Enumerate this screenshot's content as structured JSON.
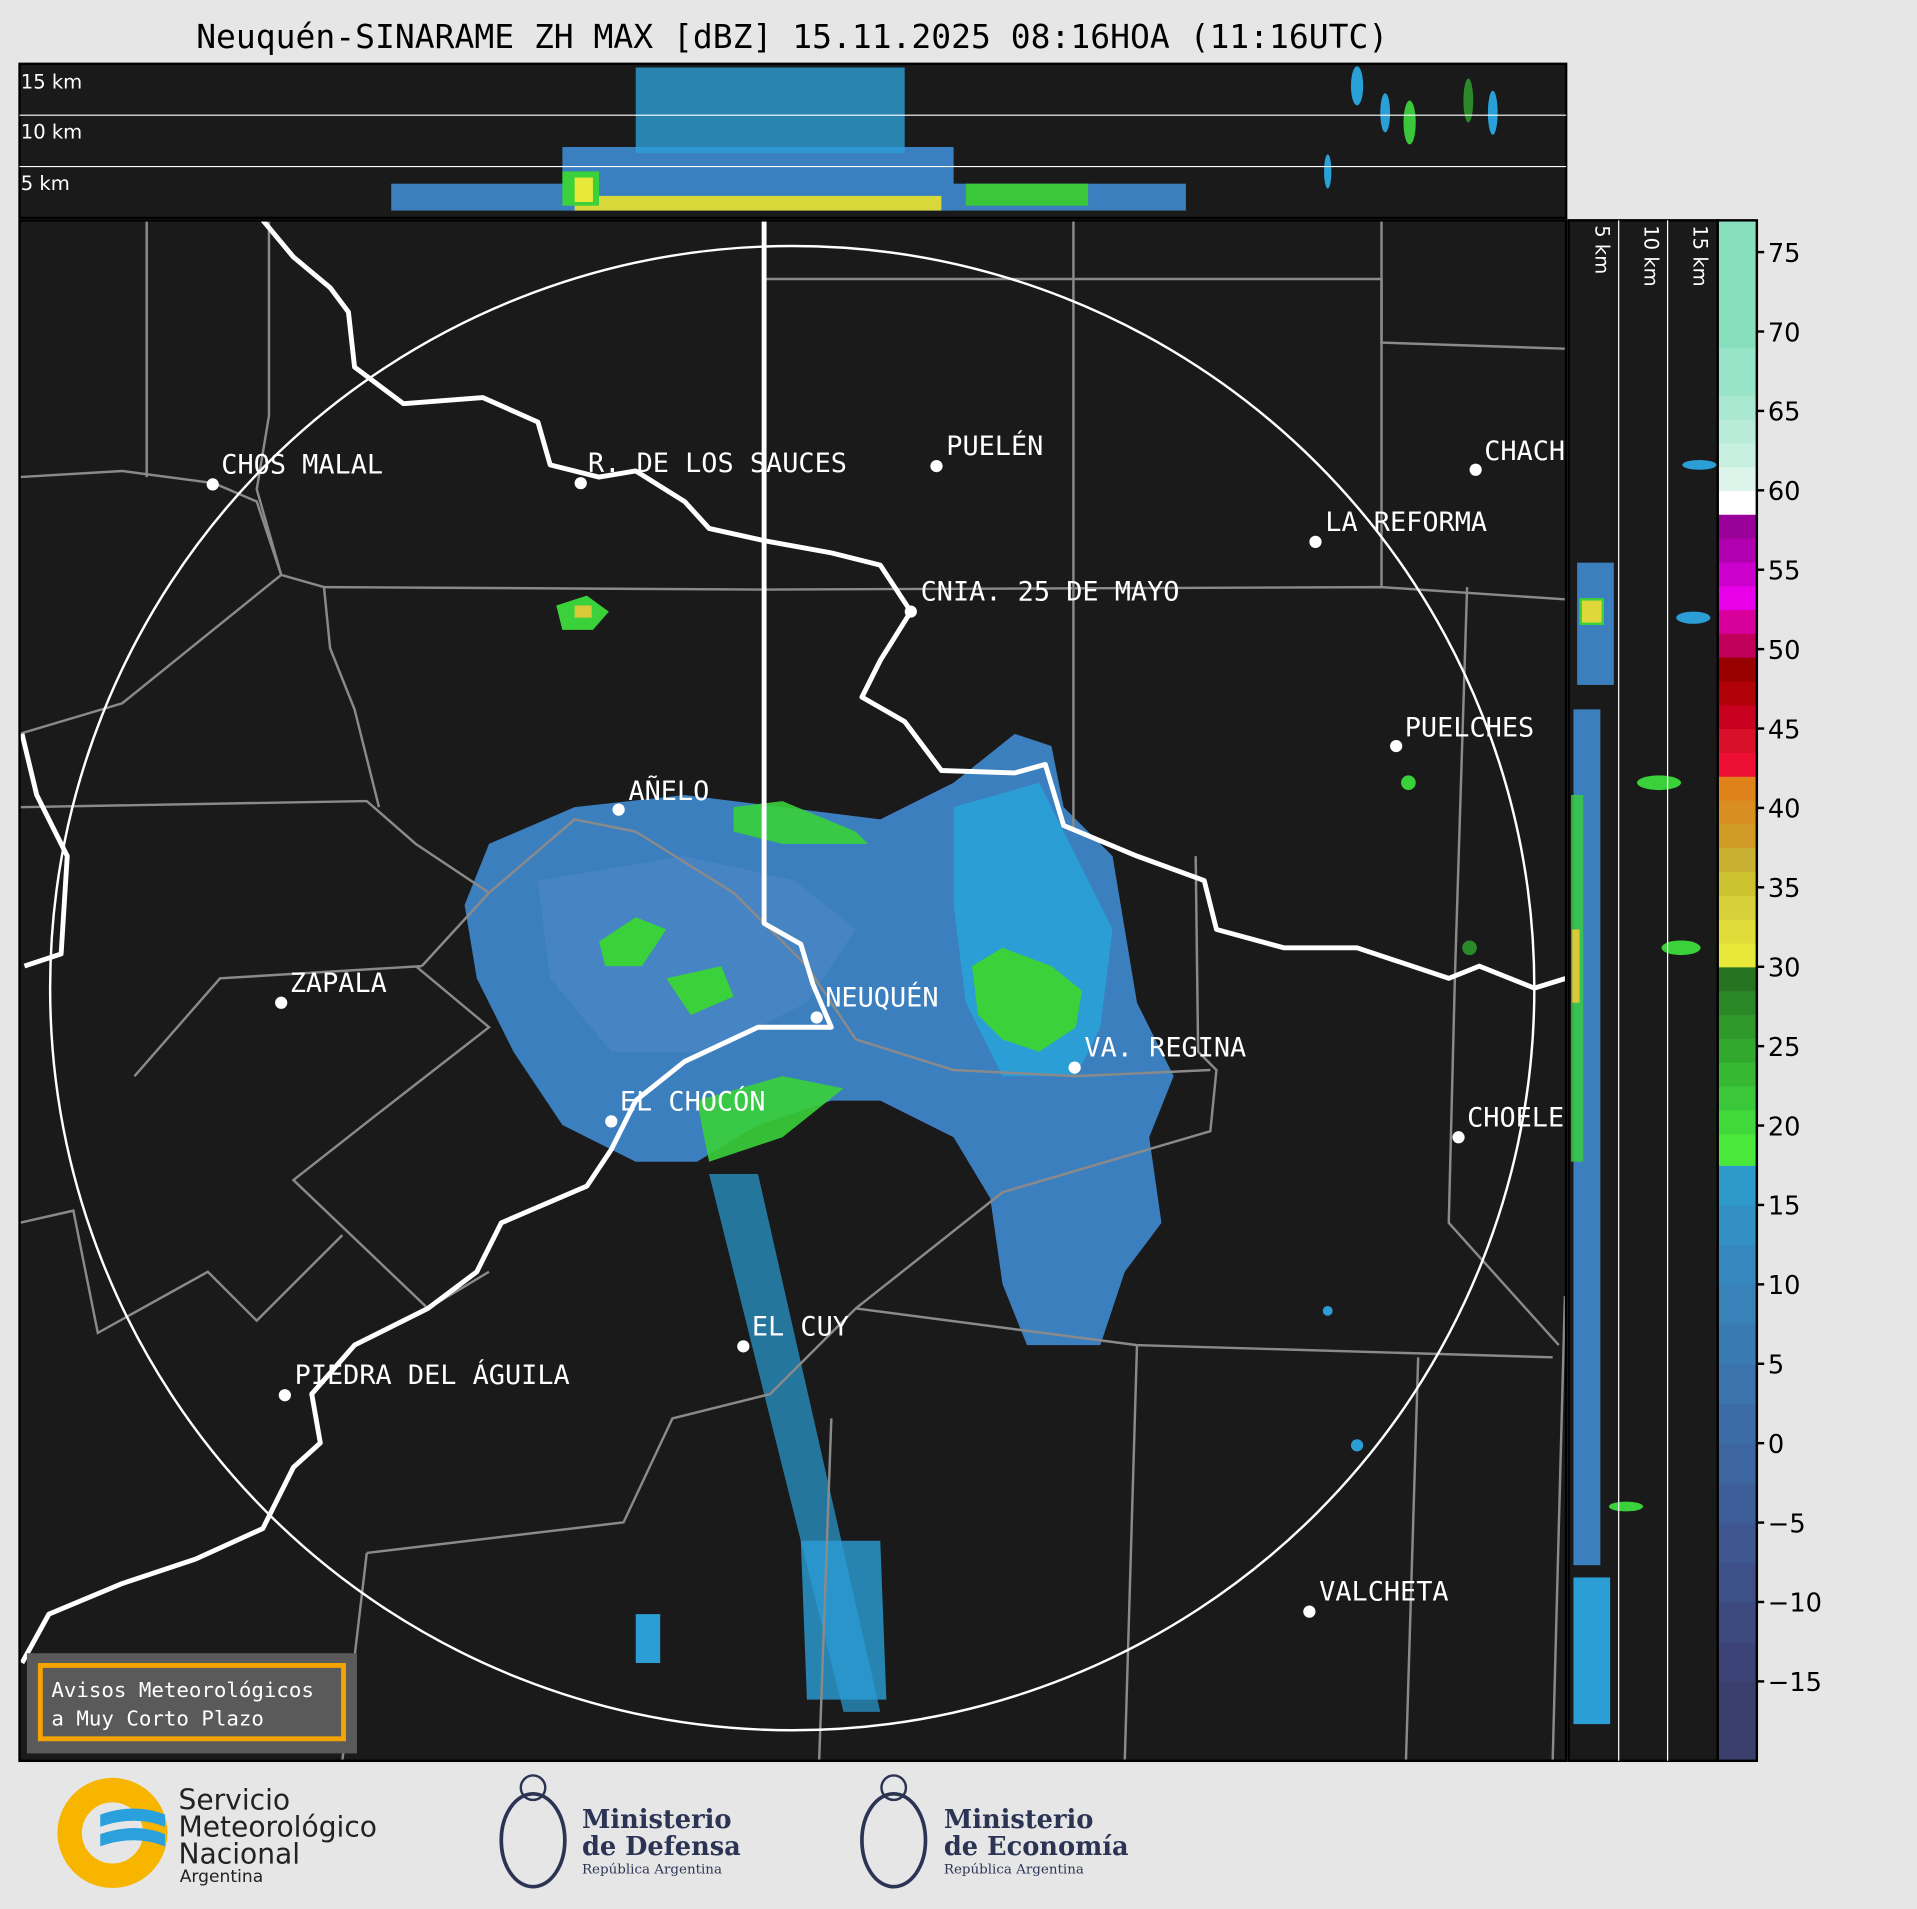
{
  "title": "Neuquén-SINARAME ZH MAX [dBZ] 15.11.2025 08:16HOA (11:16UTC)",
  "top_panel": {
    "labels": [
      "15 km",
      "10 km",
      "5 km"
    ]
  },
  "right_panel": {
    "labels": [
      "5 km",
      "10 km",
      "15 km"
    ]
  },
  "colorbar": {
    "unit": "dBZ",
    "range": [
      -20,
      77
    ],
    "ticks": [
      "75",
      "70",
      "65",
      "60",
      "55",
      "50",
      "45",
      "40",
      "35",
      "30",
      "25",
      "20",
      "15",
      "10",
      "5",
      "0",
      "−5",
      "−10",
      "−15"
    ],
    "colors": {
      "low": "#3b3f6e",
      "blue": "#2aa8d8",
      "green": "#3ad13a",
      "yellow": "#e8e83a",
      "orange": "#e08a1a",
      "red": "#d0102a",
      "magenta": "#e000e0",
      "purple": "#990099",
      "white": "#ffffff",
      "mint": "#88dfbe"
    }
  },
  "cities": [
    {
      "name": "CHOS MALAL"
    },
    {
      "name": "R. DE LOS SAUCES"
    },
    {
      "name": "PUELÉN"
    },
    {
      "name": "CHACH"
    },
    {
      "name": "LA REFORMA"
    },
    {
      "name": "CNIA. 25 DE MAYO"
    },
    {
      "name": "PUELCHES"
    },
    {
      "name": "AÑELO"
    },
    {
      "name": "ZAPALA"
    },
    {
      "name": "NEUQUÉN"
    },
    {
      "name": "VA. REGINA"
    },
    {
      "name": "EL CHOCÓN"
    },
    {
      "name": "CHOELE"
    },
    {
      "name": "EL CUY"
    },
    {
      "name": "PIEDRA DEL ÁGUILA"
    },
    {
      "name": "VALCHETA"
    }
  ],
  "notice": {
    "line1": "Avisos Meteorológicos",
    "line2": "a Muy Corto Plazo"
  },
  "logos": {
    "smn": {
      "line1": "Servicio",
      "line2": "Meteorológico",
      "line3": "Nacional",
      "line4": "Argentina"
    },
    "defensa": {
      "line1": "Ministerio",
      "line2": "de Defensa",
      "line3": "República Argentina"
    },
    "economia": {
      "line1": "Ministerio",
      "line2": "de Economía",
      "line3": "República Argentina"
    }
  }
}
